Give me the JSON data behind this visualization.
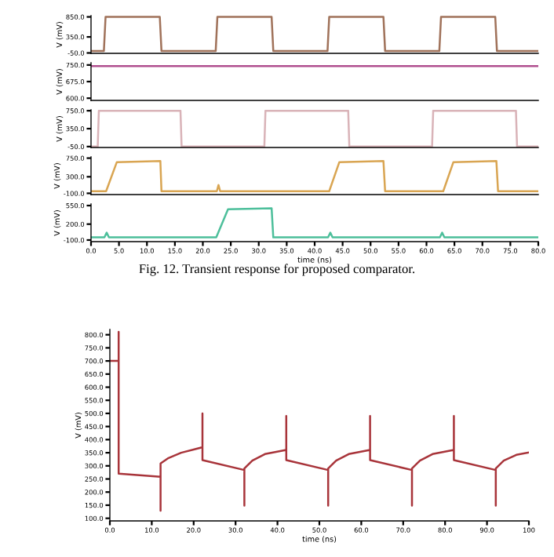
{
  "chart_data": [
    {
      "type": "line",
      "ylabel": "V (mV)",
      "tick_labels": "y",
      "xlim": [
        0,
        80
      ],
      "ylim": [
        -60,
        880
      ],
      "yticks": [
        {
          "value": 850,
          "label": "850.0"
        },
        {
          "value": 350,
          "label": "350.0"
        },
        {
          "value": -50,
          "label": "-50.0"
        }
      ],
      "series": [
        {
          "color": "#a0725a",
          "x": [
            0,
            2.3,
            2.6,
            12.3,
            12.6,
            22.3,
            22.6,
            32.3,
            32.6,
            42.3,
            42.6,
            52.3,
            52.6,
            62.3,
            62.6,
            72.3,
            72.6,
            80
          ],
          "values": [
            0,
            0,
            850,
            850,
            0,
            0,
            850,
            850,
            0,
            0,
            850,
            850,
            0,
            0,
            850,
            850,
            0,
            0
          ]
        }
      ]
    },
    {
      "type": "line",
      "ylabel": "V (mV)",
      "tick_labels": "y",
      "xlim": [
        0,
        80
      ],
      "ylim": [
        590,
        760
      ],
      "yticks": [
        {
          "value": 750,
          "label": "750.0"
        },
        {
          "value": 675,
          "label": "675.0"
        },
        {
          "value": 600,
          "label": "600.0"
        }
      ],
      "series": [
        {
          "color": "#b04f8f",
          "x": [
            0,
            80
          ],
          "values": [
            745,
            745
          ]
        }
      ]
    },
    {
      "type": "line",
      "ylabel": "V (mV)",
      "tick_labels": "y",
      "xlim": [
        0,
        80
      ],
      "ylim": [
        -70,
        770
      ],
      "yticks": [
        {
          "value": 750,
          "label": "750.0"
        },
        {
          "value": 350,
          "label": "350.0"
        },
        {
          "value": -50,
          "label": "-50.0"
        }
      ],
      "series": [
        {
          "color": "#d9b3b8",
          "x": [
            0,
            1.2,
            1.4,
            16,
            16.2,
            31,
            31.2,
            46,
            46.2,
            61,
            61.2,
            76,
            76.2,
            80
          ],
          "values": [
            -50,
            -50,
            750,
            750,
            -50,
            -50,
            750,
            750,
            -50,
            -50,
            750,
            750,
            -50,
            -50
          ]
        }
      ]
    },
    {
      "type": "line",
      "ylabel": "V (mV)",
      "tick_labels": "y",
      "xlim": [
        0,
        80
      ],
      "ylim": [
        -130,
        780
      ],
      "yticks": [
        {
          "value": 750,
          "label": "750.0"
        },
        {
          "value": 300,
          "label": "300.0"
        },
        {
          "value": -100,
          "label": "-100.0"
        }
      ],
      "series": [
        {
          "color": "#d9a552",
          "x": [
            0,
            2.7,
            4.6,
            12.4,
            12.6,
            22.5,
            22.8,
            23.1,
            42.6,
            44.4,
            52.3,
            52.6,
            63,
            64.8,
            72.5,
            72.8,
            80
          ],
          "values": [
            -50,
            -50,
            650,
            680,
            -50,
            -50,
            100,
            -50,
            -50,
            650,
            680,
            -50,
            -50,
            650,
            680,
            -50,
            -50
          ]
        }
      ]
    },
    {
      "type": "line",
      "ylabel": "V (mV)",
      "xlabel": "time (ns)",
      "xlim": [
        0,
        80
      ],
      "ylim": [
        -130,
        580
      ],
      "yticks": [
        {
          "value": 550,
          "label": "550.0"
        },
        {
          "value": 200,
          "label": "200.0"
        },
        {
          "value": -100,
          "label": "-100.0"
        }
      ],
      "xticks": [
        {
          "value": 0,
          "label": "0.0"
        },
        {
          "value": 5,
          "label": "5.0"
        },
        {
          "value": 10,
          "label": "10.0"
        },
        {
          "value": 15,
          "label": "15.0"
        },
        {
          "value": 20,
          "label": "20.0"
        },
        {
          "value": 25,
          "label": "25.0"
        },
        {
          "value": 30,
          "label": "30.0"
        },
        {
          "value": 35,
          "label": "35.0"
        },
        {
          "value": 40,
          "label": "40.0"
        },
        {
          "value": 45,
          "label": "45.0"
        },
        {
          "value": 50,
          "label": "50.0"
        },
        {
          "value": 55,
          "label": "55.0"
        },
        {
          "value": 60,
          "label": "60.0"
        },
        {
          "value": 65,
          "label": "65.0"
        },
        {
          "value": 70,
          "label": "70.0"
        },
        {
          "value": 75,
          "label": "75.0"
        },
        {
          "value": 80,
          "label": "80.0"
        }
      ],
      "annotations": [
        "Fig. 12. Transient response for proposed comparator."
      ],
      "series": [
        {
          "color": "#4dbf9b",
          "x": [
            0,
            2.4,
            2.8,
            3.2,
            22.4,
            24.5,
            32.3,
            32.6,
            42.4,
            42.8,
            43.2,
            62.4,
            62.8,
            63.2,
            80
          ],
          "values": [
            -50,
            -50,
            40,
            -50,
            -50,
            480,
            500,
            -50,
            -50,
            40,
            -50,
            -50,
            40,
            -50,
            -50
          ]
        }
      ]
    },
    {
      "type": "line",
      "ylabel": "V (mV)",
      "xlabel": "time (ns)",
      "xlim": [
        0,
        100
      ],
      "ylim": [
        90,
        820
      ],
      "xticks": [
        {
          "value": 0,
          "label": "0.0"
        },
        {
          "value": 10,
          "label": "10.0"
        },
        {
          "value": 20,
          "label": "20.0"
        },
        {
          "value": 30,
          "label": "30.0"
        },
        {
          "value": 40,
          "label": "40.0"
        },
        {
          "value": 50,
          "label": "50.0"
        },
        {
          "value": 60,
          "label": "60.0"
        },
        {
          "value": 70,
          "label": "70.0"
        },
        {
          "value": 80,
          "label": "80.0"
        },
        {
          "value": 90,
          "label": "90.0"
        },
        {
          "value": 100,
          "label": "100"
        }
      ],
      "yticks": [
        {
          "value": 100,
          "label": "100.0"
        },
        {
          "value": 150,
          "label": "150.0"
        },
        {
          "value": 200,
          "label": "200.0"
        },
        {
          "value": 250,
          "label": "250.0"
        },
        {
          "value": 300,
          "label": "300.0"
        },
        {
          "value": 350,
          "label": "350.0"
        },
        {
          "value": 400,
          "label": "400.0"
        },
        {
          "value": 450,
          "label": "450.0"
        },
        {
          "value": 500,
          "label": "500.0"
        },
        {
          "value": 550,
          "label": "550.0"
        },
        {
          "value": 600,
          "label": "600.0"
        },
        {
          "value": 650,
          "label": "650.0"
        },
        {
          "value": 700,
          "label": "700.0"
        },
        {
          "value": 750,
          "label": "750.0"
        },
        {
          "value": 800,
          "label": "800.0"
        }
      ],
      "series": [
        {
          "color": "#a8343a",
          "x": [
            0,
            2.1,
            2.1,
            2.1,
            12.1,
            12.1,
            12.1,
            14,
            17,
            22.1,
            22.1,
            22.1,
            32.1,
            32.1,
            32.1,
            34,
            37,
            42.1,
            42.1,
            42.1,
            52.1,
            52.1,
            52.1,
            54,
            57,
            62.1,
            62.1,
            62.1,
            72.1,
            72.1,
            72.1,
            74,
            77,
            82.1,
            82.1,
            82.1,
            92.1,
            92.1,
            92.1,
            94,
            97,
            100
          ],
          "values": [
            700,
            700,
            811,
            270,
            258,
            129,
            309,
            330,
            350,
            371,
            500,
            322,
            284,
            148,
            290,
            320,
            345,
            361,
            490,
            322,
            284,
            148,
            290,
            320,
            345,
            361,
            490,
            322,
            284,
            148,
            290,
            320,
            345,
            361,
            490,
            322,
            284,
            148,
            290,
            320,
            342,
            351
          ]
        }
      ]
    }
  ]
}
